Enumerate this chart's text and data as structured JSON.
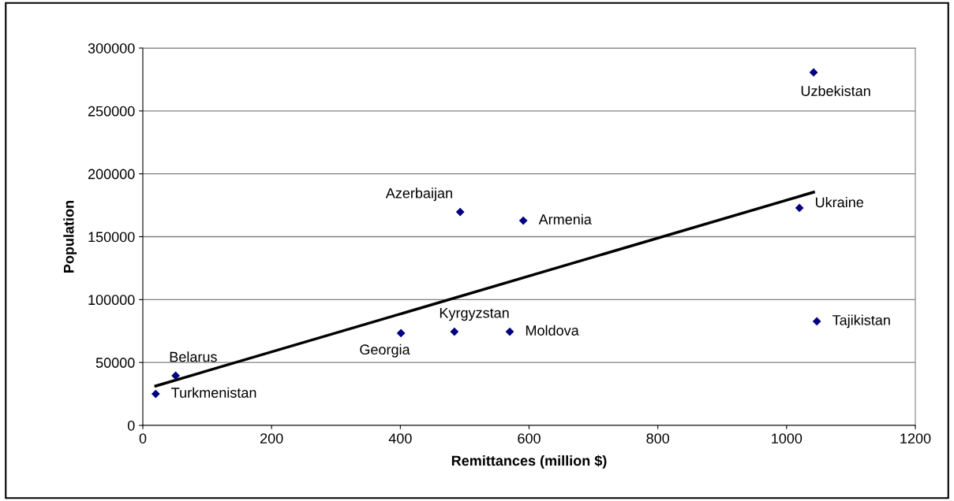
{
  "chart_data": {
    "type": "scatter",
    "xlabel": "Remittances (million $)",
    "ylabel": "Population",
    "xlim": [
      0,
      1200
    ],
    "xticks": [
      0,
      200,
      400,
      600,
      800,
      1000,
      1200
    ],
    "ylim": [
      0,
      300000
    ],
    "yticks": [
      0,
      50000,
      100000,
      150000,
      200000,
      250000,
      300000
    ],
    "grid": "y",
    "legend": false,
    "series": [
      {
        "color": "#000080",
        "marker": "diamond",
        "x": [
          20,
          51,
          401,
          484,
          570,
          493,
          591,
          1020,
          1042,
          1047
        ],
        "values": [
          25000,
          39500,
          73300,
          74500,
          74500,
          169700,
          162800,
          172900,
          280600,
          82700
        ]
      },
      {
        "type": "line",
        "color": "#000000",
        "x": [
          20,
          1042
        ],
        "values": [
          31300,
          185400
        ]
      }
    ],
    "annotations": [
      {
        "text": "Turkmenistan",
        "x": 20,
        "y": 25000
      },
      {
        "text": "Belarus",
        "x": 51,
        "y": 39500
      },
      {
        "text": "Georgia",
        "x": 401,
        "y": 73300
      },
      {
        "text": "Kyrgyzstan",
        "x": 484,
        "y": 74500
      },
      {
        "text": "Moldova",
        "x": 570,
        "y": 74500
      },
      {
        "text": "Azerbaijan",
        "x": 493,
        "y": 169700
      },
      {
        "text": "Armenia",
        "x": 591,
        "y": 162800
      },
      {
        "text": "Ukraine",
        "x": 1020,
        "y": 172900
      },
      {
        "text": "Uzbekistan",
        "x": 1042,
        "y": 280600
      },
      {
        "text": "Tajikistan",
        "x": 1047,
        "y": 82700
      }
    ]
  }
}
